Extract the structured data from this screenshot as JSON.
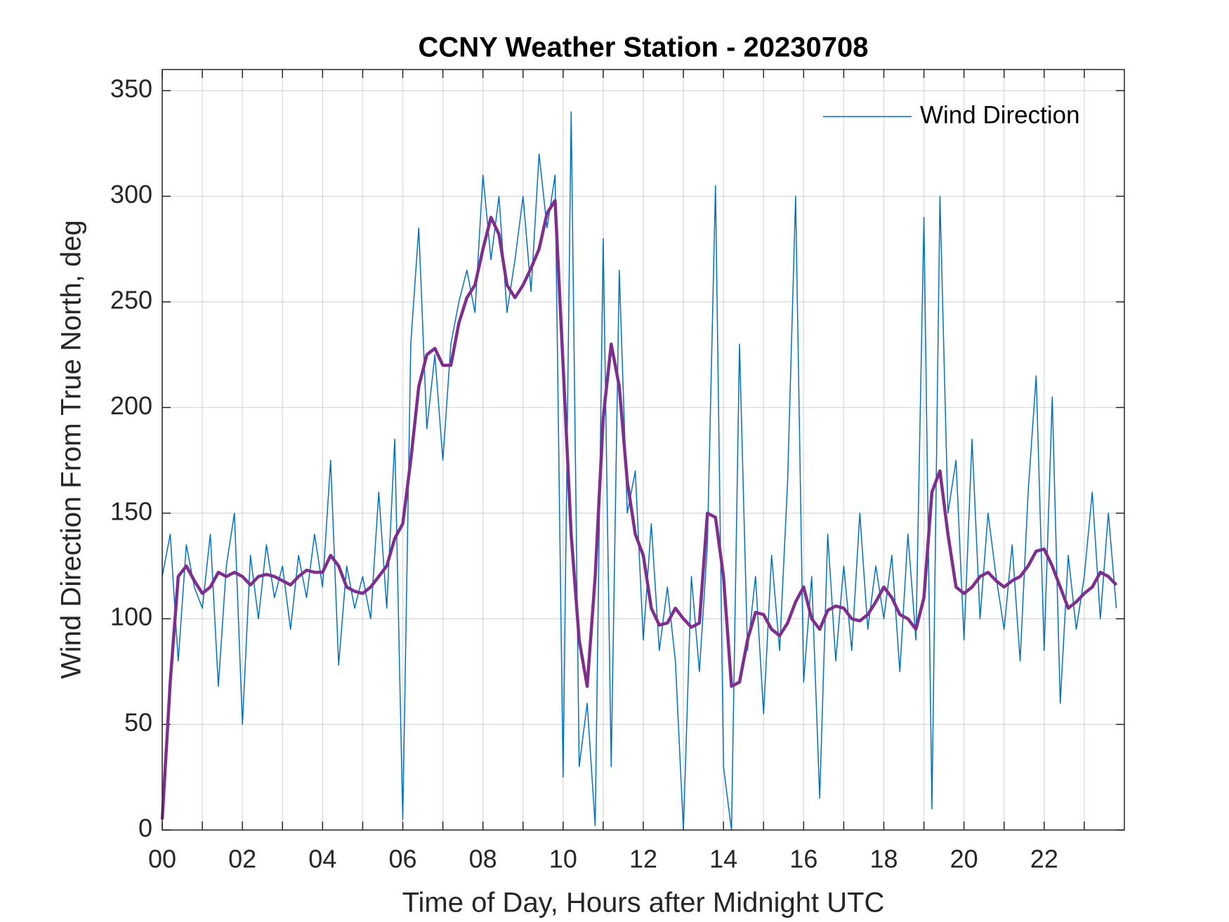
{
  "chart_data": {
    "type": "line",
    "title": "CCNY Weather Station - 20230708",
    "xlabel": "Time of Day, Hours after Midnight UTC",
    "ylabel": "Wind Direction From True North, deg",
    "xlim": [
      0,
      24
    ],
    "ylim": [
      0,
      360
    ],
    "xticks": [
      {
        "value": 0,
        "label": "00"
      },
      {
        "value": 2,
        "label": "02"
      },
      {
        "value": 4,
        "label": "04"
      },
      {
        "value": 6,
        "label": "06"
      },
      {
        "value": 8,
        "label": "08"
      },
      10,
      12,
      14,
      16,
      18,
      20,
      22
    ],
    "xminorticks": [
      1,
      3,
      5,
      7,
      9,
      11,
      13,
      15,
      17,
      19,
      21,
      23
    ],
    "yticks": [
      0,
      50,
      100,
      150,
      200,
      250,
      300,
      350
    ],
    "grid": true,
    "legend": "upper right",
    "x": [
      0,
      0.2,
      0.4,
      0.6,
      0.8,
      1,
      1.2,
      1.4,
      1.6,
      1.8,
      2,
      2.2,
      2.4,
      2.6,
      2.8,
      3,
      3.2,
      3.4,
      3.6,
      3.8,
      4,
      4.2,
      4.4,
      4.6,
      4.8,
      5,
      5.2,
      5.4,
      5.6,
      5.8,
      6,
      6.2,
      6.4,
      6.6,
      6.8,
      7,
      7.2,
      7.4,
      7.6,
      7.8,
      8,
      8.2,
      8.4,
      8.6,
      8.8,
      9,
      9.2,
      9.4,
      9.6,
      9.8,
      10,
      10.2,
      10.4,
      10.6,
      10.8,
      11,
      11.2,
      11.4,
      11.6,
      11.8,
      12,
      12.2,
      12.4,
      12.6,
      12.8,
      13,
      13.2,
      13.4,
      13.6,
      13.8,
      14,
      14.2,
      14.4,
      14.6,
      14.8,
      15,
      15.2,
      15.4,
      15.6,
      15.8,
      16,
      16.2,
      16.4,
      16.6,
      16.8,
      17,
      17.2,
      17.4,
      17.6,
      17.8,
      18,
      18.2,
      18.4,
      18.6,
      18.8,
      19,
      19.2,
      19.4,
      19.6,
      19.8,
      20,
      20.2,
      20.4,
      20.6,
      20.8,
      21,
      21.2,
      21.4,
      21.6,
      21.8,
      22,
      22.2,
      22.4,
      22.6,
      22.8,
      23,
      23.2,
      23.4,
      23.6,
      23.8
    ],
    "series": [
      {
        "name": "Wind Direction",
        "color": "#0072bd",
        "width": 1.5,
        "values": [
          120,
          140,
          80,
          135,
          115,
          105,
          140,
          68,
          125,
          150,
          50,
          130,
          100,
          135,
          110,
          125,
          95,
          130,
          110,
          140,
          115,
          175,
          78,
          125,
          105,
          120,
          100,
          160,
          105,
          185,
          5,
          230,
          285,
          190,
          225,
          175,
          230,
          250,
          265,
          245,
          310,
          270,
          300,
          245,
          270,
          300,
          255,
          320,
          285,
          310,
          25,
          340,
          30,
          60,
          2,
          280,
          30,
          265,
          150,
          170,
          90,
          145,
          85,
          115,
          80,
          0,
          120,
          75,
          135,
          305,
          30,
          0,
          230,
          85,
          120,
          55,
          130,
          85,
          165,
          300,
          70,
          120,
          15,
          140,
          80,
          125,
          85,
          150,
          95,
          125,
          100,
          130,
          75,
          140,
          90,
          290,
          10,
          300,
          150,
          175,
          90,
          185,
          100,
          150,
          120,
          95,
          135,
          80,
          160,
          215,
          85,
          205,
          60,
          130,
          95,
          120,
          160,
          100,
          150,
          105
        ]
      },
      {
        "color": "#7e2f8e",
        "width": 4.5,
        "values": [
          5,
          70,
          120,
          125,
          118,
          112,
          115,
          122,
          120,
          122,
          120,
          116,
          120,
          121,
          120,
          118,
          116,
          120,
          123,
          122,
          122,
          130,
          125,
          115,
          113,
          112,
          115,
          120,
          125,
          138,
          145,
          175,
          210,
          225,
          228,
          220,
          220,
          240,
          252,
          258,
          275,
          290,
          282,
          258,
          252,
          258,
          266,
          275,
          292,
          298,
          220,
          140,
          90,
          68,
          120,
          195,
          230,
          210,
          165,
          140,
          130,
          105,
          97,
          98,
          105,
          100,
          96,
          98,
          150,
          148,
          120,
          68,
          70,
          90,
          103,
          102,
          95,
          92,
          98,
          108,
          115,
          100,
          95,
          104,
          106,
          105,
          100,
          99,
          102,
          108,
          115,
          110,
          102,
          100,
          95,
          110,
          160,
          170,
          140,
          115,
          112,
          115,
          120,
          122,
          118,
          115,
          118,
          120,
          125,
          132,
          133,
          125,
          115,
          105,
          108,
          112,
          115,
          122,
          120,
          116
        ]
      }
    ]
  }
}
